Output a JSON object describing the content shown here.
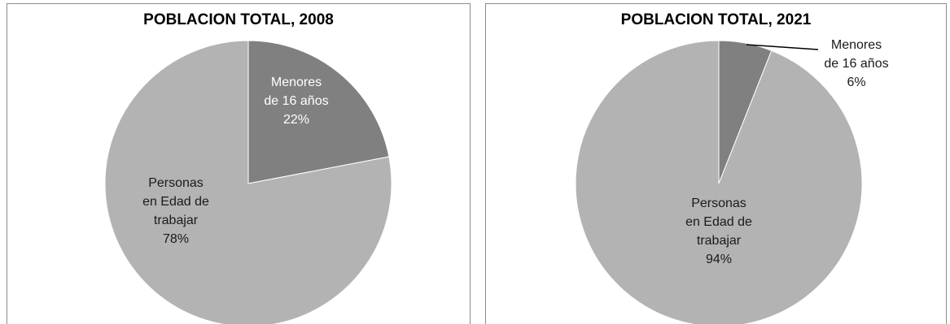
{
  "colors": {
    "slice_dark": "#808080",
    "slice_light": "#b3b3b3",
    "label_on_dark": "#ffffff",
    "label_on_light": "#1a1a1a",
    "label_outside": "#1a1a1a"
  },
  "chart_data": [
    {
      "type": "pie",
      "title": "POBLACION TOTAL, 2008",
      "slices": [
        {
          "name_lines": [
            "Menores",
            "de 16 años"
          ],
          "percent_label": "22%",
          "value": 22,
          "color": "#808080"
        },
        {
          "name_lines": [
            "Personas",
            "en Edad de",
            "trabajar"
          ],
          "percent_label": "78%",
          "value": 78,
          "color": "#b3b3b3"
        }
      ],
      "legend": "none"
    },
    {
      "type": "pie",
      "title": "POBLACION TOTAL, 2021",
      "slices": [
        {
          "name_lines": [
            "Menores",
            "de 16 años"
          ],
          "percent_label": "6%",
          "value": 6,
          "color": "#808080"
        },
        {
          "name_lines": [
            "Personas",
            "en Edad de",
            "trabajar"
          ],
          "percent_label": "94%",
          "value": 94,
          "color": "#b3b3b3"
        }
      ],
      "legend": "none"
    }
  ]
}
